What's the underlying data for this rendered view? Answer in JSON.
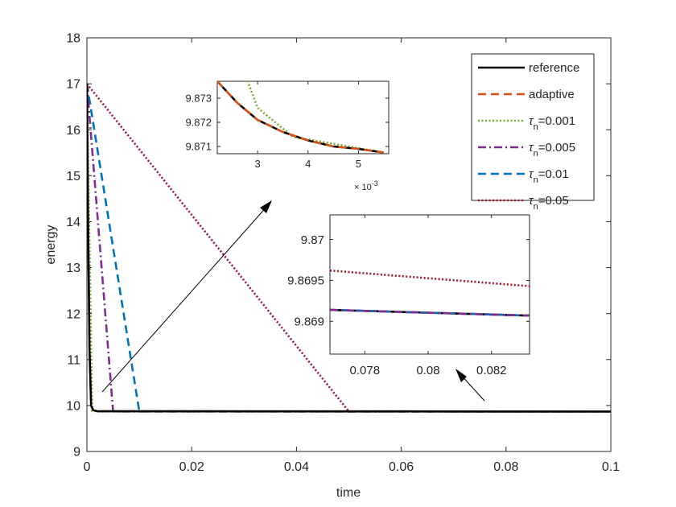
{
  "chart_data": {
    "type": "line",
    "xlabel": "time",
    "ylabel": "energy",
    "xlim": [
      0,
      0.1
    ],
    "ylim": [
      9,
      18
    ],
    "grid": false,
    "xticks": [
      0,
      0.02,
      0.04,
      0.06,
      0.08,
      0.1
    ],
    "xtick_labels": [
      "0",
      "0.02",
      "0.04",
      "0.06",
      "0.08",
      "0.1"
    ],
    "yticks": [
      9,
      10,
      11,
      12,
      13,
      14,
      15,
      16,
      17,
      18
    ],
    "ytick_labels": [
      "9",
      "10",
      "11",
      "12",
      "13",
      "14",
      "15",
      "16",
      "17",
      "18"
    ],
    "legend_position": "top-right",
    "series": [
      {
        "key": "reference",
        "name": "reference",
        "color": "#000000",
        "style": "solid",
        "x": [
          0,
          0.0002,
          0.0005,
          0.0008,
          0.0012,
          0.002,
          0.1
        ],
        "y": [
          17,
          14.2,
          11.2,
          10.0,
          9.9,
          9.875,
          9.869
        ]
      },
      {
        "key": "adaptive",
        "name": "adaptive",
        "color": "#D95319",
        "style": "dashed",
        "x": [
          0,
          0.0002,
          0.0005,
          0.0008,
          0.0012,
          0.002,
          0.1
        ],
        "y": [
          17,
          14.2,
          11.2,
          10.0,
          9.9,
          9.875,
          9.869
        ]
      },
      {
        "key": "tau001",
        "name_prefix": "τ",
        "name_sub": "n",
        "name_suffix": "=0.001",
        "color": "#77AC30",
        "style": "dotted",
        "x": [
          0,
          0.001,
          0.002,
          0.1
        ],
        "y": [
          17,
          9.88,
          9.875,
          9.869
        ]
      },
      {
        "key": "tau005",
        "name_prefix": "τ",
        "name_sub": "n",
        "name_suffix": "=0.005",
        "color": "#7E2F8E",
        "style": "dashdot",
        "x": [
          0,
          0.005,
          0.1
        ],
        "y": [
          17,
          9.87,
          9.869
        ]
      },
      {
        "key": "tau01",
        "name_prefix": "τ",
        "name_sub": "n",
        "name_suffix": "=0.01",
        "color": "#0072BD",
        "style": "dashed",
        "x": [
          0,
          0.01,
          0.1
        ],
        "y": [
          17,
          9.87,
          9.869
        ]
      },
      {
        "key": "tau05",
        "name_prefix": "τ",
        "name_sub": "n",
        "name_suffix": "=0.05",
        "color": "#A2142F",
        "style": "dotted",
        "x": [
          0,
          0.05,
          0.1
        ],
        "y": [
          17,
          9.8697,
          9.8694
        ]
      }
    ],
    "insets": [
      {
        "name": "inset-early",
        "xlim": [
          0.0022,
          0.0056
        ],
        "ylim": [
          9.8707,
          9.8737
        ],
        "xticks": [
          0.003,
          0.004,
          0.005
        ],
        "xtick_labels": [
          "3",
          "4",
          "5"
        ],
        "yticks": [
          9.871,
          9.872,
          9.873
        ],
        "ytick_labels": [
          "9.871",
          "9.872",
          "9.873"
        ],
        "x_exponent": {
          "base": "× 10",
          "exp": "-3"
        },
        "series": [
          {
            "key": "tau001",
            "x": [
              0.00275,
              0.003,
              0.0037,
              0.0055
            ],
            "y": [
              9.874,
              9.8726,
              9.8714,
              9.87075
            ]
          },
          {
            "key": "reference",
            "x": [
              0.0022,
              0.0026,
              0.003,
              0.0035,
              0.004,
              0.0045,
              0.005,
              0.0055
            ],
            "y": [
              9.8737,
              9.8728,
              9.8721,
              9.8716,
              9.87125,
              9.871,
              9.8709,
              9.87075
            ]
          },
          {
            "key": "adaptive",
            "x": [
              0.0022,
              0.0026,
              0.003,
              0.0035,
              0.004,
              0.0045,
              0.005,
              0.0055
            ],
            "y": [
              9.8737,
              9.8728,
              9.8721,
              9.8716,
              9.87125,
              9.871,
              9.8709,
              9.87075
            ]
          }
        ]
      },
      {
        "name": "inset-late",
        "xlim": [
          0.0769,
          0.0832
        ],
        "ylim": [
          9.8686,
          9.8703
        ],
        "xticks": [
          0.078,
          0.08,
          0.082
        ],
        "xtick_labels": [
          "0.078",
          "0.08",
          "0.082"
        ],
        "yticks": [
          9.869,
          9.8695,
          9.87
        ],
        "ytick_labels": [
          "9.869",
          "9.8695",
          "9.87"
        ],
        "series": [
          {
            "key": "tau05",
            "x": [
              0.0769,
              0.0832
            ],
            "y": [
              9.86962,
              9.86943
            ]
          },
          {
            "key": "reference",
            "x": [
              0.0769,
              0.0832
            ],
            "y": [
              9.86914,
              9.86907
            ]
          },
          {
            "key": "adaptive",
            "x": [
              0.0769,
              0.0832
            ],
            "y": [
              9.86914,
              9.86907
            ]
          },
          {
            "key": "tau01",
            "x": [
              0.0769,
              0.0832
            ],
            "y": [
              9.86914,
              9.86907
            ]
          },
          {
            "key": "tau005",
            "x": [
              0.0769,
              0.0832
            ],
            "y": [
              9.86914,
              9.86907
            ]
          }
        ]
      }
    ]
  }
}
